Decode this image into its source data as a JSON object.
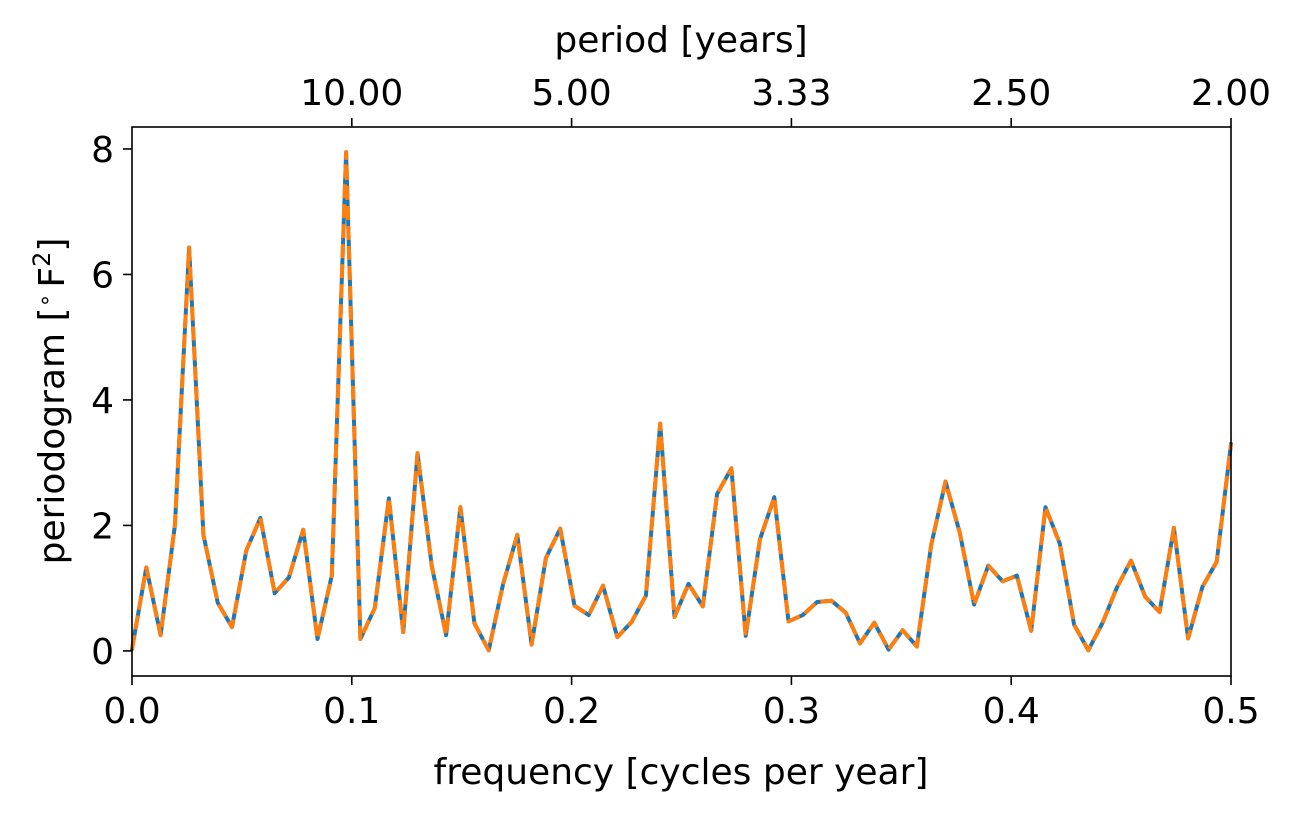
{
  "chart_data": {
    "type": "line",
    "title": "",
    "xlabel": "frequency [cycles per year]",
    "ylabel": "periodogram [",
    "ylabel_unit_base": "F",
    "ylabel_unit_exp": "2",
    "ylabel_close": "]",
    "degree_symbol": "∘",
    "secondary_xlabel": "period [years]",
    "xlim": [
      0,
      0.5
    ],
    "ylim": [
      -0.4,
      8.35
    ],
    "x_ticks": [
      0.0,
      0.1,
      0.2,
      0.3,
      0.4,
      0.5
    ],
    "x_tick_labels": [
      "0.0",
      "0.1",
      "0.2",
      "0.3",
      "0.4",
      "0.5"
    ],
    "y_ticks": [
      0,
      2,
      4,
      6,
      8
    ],
    "y_tick_labels": [
      "0",
      "2",
      "4",
      "6",
      "8"
    ],
    "secondary_x_ticks": [
      0.1,
      0.2,
      0.3,
      0.4,
      0.5
    ],
    "secondary_x_tick_labels": [
      "10.00",
      "5.00",
      "3.33",
      "2.50",
      "2.00"
    ],
    "grid": false,
    "legend": "none",
    "x": [
      0.0,
      0.0065,
      0.013,
      0.0195,
      0.026,
      0.0325,
      0.039,
      0.0455,
      0.052,
      0.0584,
      0.0649,
      0.0714,
      0.0779,
      0.0844,
      0.0909,
      0.0974,
      0.1039,
      0.1104,
      0.1169,
      0.1234,
      0.1299,
      0.1364,
      0.1429,
      0.1494,
      0.1558,
      0.1623,
      0.1688,
      0.1753,
      0.1818,
      0.1883,
      0.1948,
      0.2013,
      0.2078,
      0.2143,
      0.2208,
      0.2273,
      0.2338,
      0.2403,
      0.2468,
      0.2532,
      0.2597,
      0.2662,
      0.2727,
      0.2792,
      0.2857,
      0.2922,
      0.2987,
      0.3052,
      0.3117,
      0.3182,
      0.3247,
      0.3312,
      0.3377,
      0.3442,
      0.3506,
      0.3571,
      0.3636,
      0.3701,
      0.3766,
      0.3831,
      0.3896,
      0.3961,
      0.4026,
      0.4091,
      0.4156,
      0.4221,
      0.4286,
      0.4351,
      0.4416,
      0.4481,
      0.4545,
      0.461,
      0.4675,
      0.474,
      0.4805,
      0.487,
      0.4935,
      0.5
    ],
    "series": [
      {
        "color": "#1f77b4",
        "style": "solid",
        "values": [
          0.03,
          1.33,
          0.25,
          2.0,
          6.43,
          1.85,
          0.77,
          0.38,
          1.6,
          2.12,
          0.92,
          1.17,
          1.93,
          0.19,
          1.2,
          7.95,
          0.19,
          0.68,
          2.43,
          0.3,
          3.15,
          1.35,
          0.25,
          2.29,
          0.44,
          0.01,
          1.06,
          1.85,
          0.1,
          1.48,
          1.95,
          0.72,
          0.57,
          1.04,
          0.22,
          0.46,
          0.88,
          3.62,
          0.54,
          1.07,
          0.71,
          2.5,
          2.91,
          0.24,
          1.78,
          2.45,
          0.47,
          0.57,
          0.78,
          0.8,
          0.61,
          0.12,
          0.45,
          0.02,
          0.33,
          0.07,
          1.69,
          2.7,
          1.88,
          0.74,
          1.36,
          1.11,
          1.2,
          0.32,
          2.29,
          1.71,
          0.42,
          0.01,
          0.45,
          1.01,
          1.44,
          0.86,
          0.62,
          1.96,
          0.2,
          1.02,
          1.42,
          3.3
        ]
      },
      {
        "color": "#ff7f0e",
        "style": "dashed",
        "values": [
          0.03,
          1.33,
          0.25,
          2.0,
          6.43,
          1.85,
          0.77,
          0.38,
          1.6,
          2.12,
          0.92,
          1.17,
          1.93,
          0.19,
          1.2,
          7.95,
          0.19,
          0.68,
          2.43,
          0.3,
          3.15,
          1.35,
          0.25,
          2.29,
          0.44,
          0.01,
          1.06,
          1.85,
          0.1,
          1.48,
          1.95,
          0.72,
          0.57,
          1.04,
          0.22,
          0.46,
          0.88,
          3.62,
          0.54,
          1.07,
          0.71,
          2.5,
          2.91,
          0.24,
          1.78,
          2.45,
          0.47,
          0.57,
          0.78,
          0.8,
          0.61,
          0.12,
          0.45,
          0.02,
          0.33,
          0.07,
          1.69,
          2.7,
          1.88,
          0.74,
          1.36,
          1.11,
          1.2,
          0.32,
          2.29,
          1.71,
          0.42,
          0.01,
          0.45,
          1.01,
          1.44,
          0.86,
          0.62,
          1.96,
          0.2,
          1.02,
          1.42,
          3.3
        ]
      }
    ]
  }
}
